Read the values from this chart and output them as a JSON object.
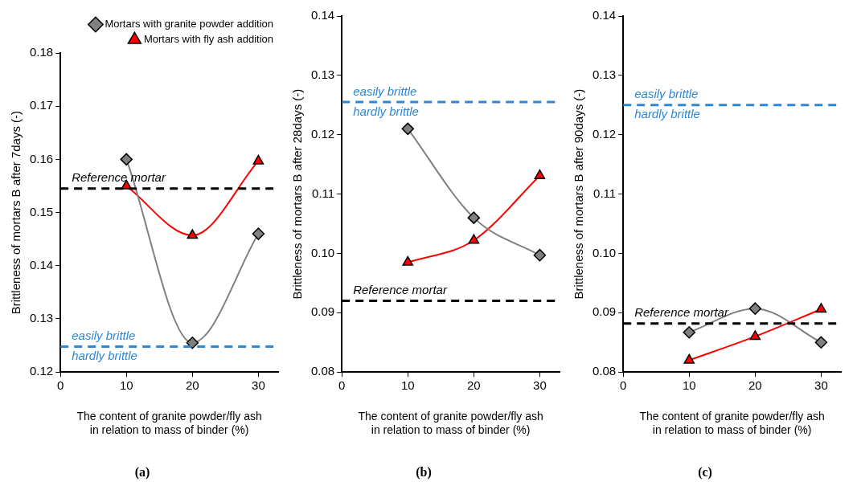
{
  "chart_data": [
    {
      "type": "line",
      "title": "(a)",
      "xlabel": "The content of granite powder/fly ash in relation to mass of binder (%)",
      "ylabel": "Brittleness of mortars B after 7days (-)",
      "x": [
        10,
        20,
        30
      ],
      "xlim": [
        0,
        33
      ],
      "xticks": [
        0,
        10,
        20,
        30
      ],
      "ylim": [
        0.12,
        0.18
      ],
      "yticks": [
        0.12,
        0.13,
        0.14,
        0.15,
        0.16,
        0.17,
        0.18
      ],
      "grid": false,
      "legend": "top right",
      "line_style": "solid",
      "series": [
        {
          "name": "Mortars with granite powder addition",
          "color": "#808080",
          "marker": "diamond",
          "values": [
            0.16,
            0.1255,
            0.146
          ]
        },
        {
          "name": "Mortars with fly ash addition",
          "color": "#ff0000",
          "marker": "triangle",
          "values": [
            0.155,
            0.1457,
            0.1597
          ]
        }
      ],
      "ref_lines": [
        {
          "axis": "y",
          "value": 0.1545,
          "label": "Reference mortar",
          "color": "#000000",
          "line_style": "dashed"
        },
        {
          "axis": "y",
          "value": 0.1248,
          "label": "easily brittle",
          "color": "#2e86d4",
          "line_style": "dashed"
        }
      ],
      "annotations": [
        {
          "text": "hardly brittle",
          "y": 0.1248
        }
      ]
    },
    {
      "type": "line",
      "title": "(b)",
      "xlabel": "The content of granite powder/fly ash in relation to mass of binder (%)",
      "ylabel": "Brittleness of mortars B after 28days (-)",
      "x": [
        10,
        20,
        30
      ],
      "xlim": [
        0,
        33
      ],
      "xticks": [
        0,
        10,
        20,
        30
      ],
      "ylim": [
        0.08,
        0.14
      ],
      "yticks": [
        0.08,
        0.09,
        {
          "value": 0.1,
          "label": "0.10"
        },
        0.11,
        0.12,
        0.13,
        0.14
      ],
      "grid": false,
      "legend": false,
      "line_style": "solid",
      "series": [
        {
          "color": "#808080",
          "marker": "diamond",
          "values": [
            0.121,
            0.106,
            0.0997
          ]
        },
        {
          "color": "#ff0000",
          "marker": "triangle",
          "values": [
            0.0985,
            0.1022,
            0.1131
          ]
        }
      ],
      "ref_lines": [
        {
          "axis": "y",
          "value": 0.092,
          "label": "Reference mortar",
          "color": "#000000",
          "line_style": "dashed"
        },
        {
          "axis": "y",
          "value": 0.1255,
          "label": "easily brittle",
          "color": "#2e86d4",
          "line_style": "dashed"
        }
      ],
      "annotations": [
        {
          "text": "hardly brittle",
          "y": 0.1255
        }
      ]
    },
    {
      "type": "line",
      "title": "(c)",
      "xlabel": "The content of granite powder/fly ash in relation to mass of binder (%)",
      "ylabel": "Brittleness of mortars B after 90days (-)",
      "x": [
        10,
        20,
        30
      ],
      "xlim": [
        0,
        33
      ],
      "xticks": [
        0,
        10,
        20,
        30
      ],
      "ylim": [
        0.08,
        0.14
      ],
      "yticks": [
        0.08,
        0.09,
        {
          "value": 0.1,
          "label": "0.10"
        },
        0.11,
        0.12,
        0.13,
        0.14
      ],
      "grid": false,
      "legend": false,
      "line_style": "solid",
      "series": [
        {
          "color": "#808080",
          "marker": "diamond",
          "values": [
            0.0867,
            0.0907,
            0.085
          ]
        },
        {
          "color": "#ff0000",
          "marker": "triangle",
          "values": [
            0.082,
            0.086,
            0.0906
          ]
        }
      ],
      "ref_lines": [
        {
          "axis": "y",
          "value": 0.0882,
          "label": "Reference mortar",
          "color": "#000000",
          "line_style": "dashed"
        },
        {
          "axis": "y",
          "value": 0.125,
          "label": "easily brittle",
          "color": "#2e86d4",
          "line_style": "dashed"
        }
      ],
      "annotations": [
        {
          "text": "hardly brittle",
          "y": 0.125
        }
      ]
    }
  ]
}
